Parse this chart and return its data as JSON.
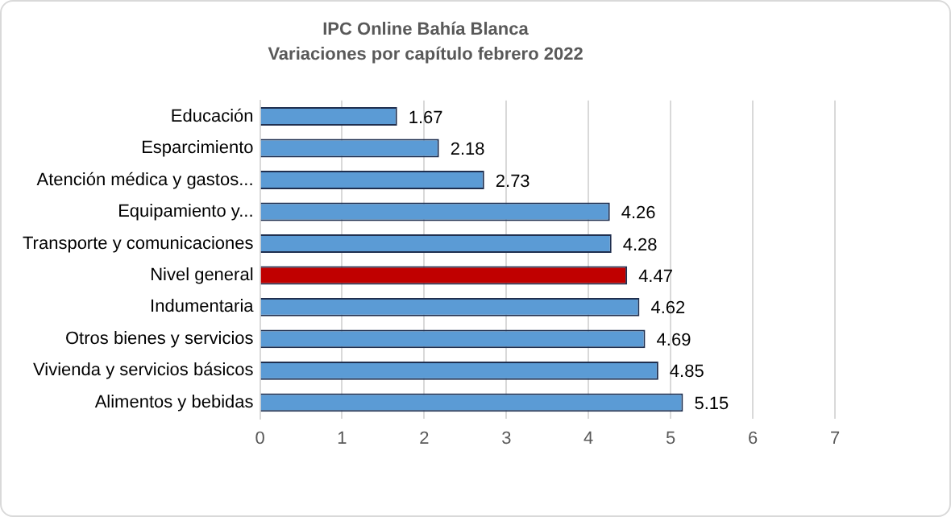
{
  "chart_data": {
    "type": "bar",
    "orientation": "horizontal",
    "title": "IPC Online Bahía Blanca",
    "subtitle": "Variaciones por capítulo febrero 2022",
    "categories": [
      "Educación",
      "Esparcimiento",
      "Atención médica y gastos...",
      "Equipamiento y...",
      "Transporte y comunicaciones",
      "Nivel general",
      "Indumentaria",
      "Otros bienes y servicios",
      "Vivienda y servicios básicos",
      "Alimentos y bebidas"
    ],
    "values": [
      1.67,
      2.18,
      2.73,
      4.26,
      4.28,
      4.47,
      4.62,
      4.69,
      4.85,
      5.15
    ],
    "colors": [
      "#5b9bd5",
      "#5b9bd5",
      "#5b9bd5",
      "#5b9bd5",
      "#5b9bd5",
      "#c00000",
      "#5b9bd5",
      "#5b9bd5",
      "#5b9bd5",
      "#5b9bd5"
    ],
    "xlim": [
      0,
      7
    ],
    "xticks": [
      0,
      1,
      2,
      3,
      4,
      5,
      6,
      7
    ],
    "grid": "x",
    "data_labels": true,
    "legend": false
  }
}
